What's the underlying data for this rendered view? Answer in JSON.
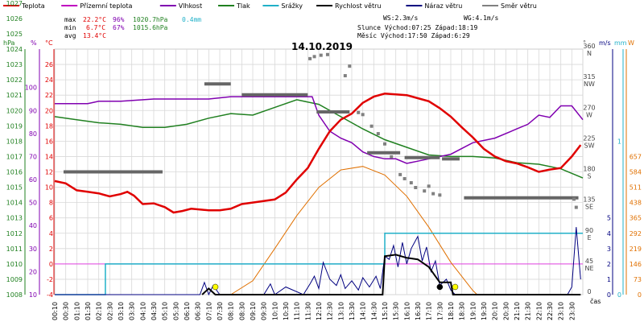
{
  "chart_data": {
    "type": "line",
    "title": "14.10.2019",
    "legend": [
      {
        "label": "Teplota",
        "color": "#e00000"
      },
      {
        "label": "Přízemní teplota",
        "color": "#c000c0"
      },
      {
        "label": "Vlhkost",
        "color": "#8000b0"
      },
      {
        "label": "Tlak",
        "color": "#208020"
      },
      {
        "label": "Srážky",
        "color": "#20b0c8"
      },
      {
        "label": "Rychlost větru",
        "color": "#000000"
      },
      {
        "label": "Náraz větru",
        "color": "#000080"
      },
      {
        "label": "Směr větru",
        "color": "#808080"
      }
    ],
    "stats": {
      "max_label": "max",
      "min_label": "min",
      "avg_label": "avg",
      "max_temp": "22.2°C",
      "max_hum": "96%",
      "max_press": "1020.7hPa",
      "max_rain": "0.4mm",
      "min_temp": "6.7°C",
      "min_hum": "67%",
      "min_press": "1015.6hPa",
      "avg_temp": "13.4°C"
    },
    "wind_info": {
      "ws": "WS:2.3m/s",
      "wg": "WG:4.1m/s",
      "sun": "Slunce Východ:07:25  Západ:18:19",
      "moon": "Měsíc  Východ:17:50  Západ:6:29"
    },
    "axis_units": {
      "hpa": "hPa",
      "percent": "%",
      "celsius": "°C",
      "degree": "°",
      "ms": "m/s",
      "mm": "mm",
      "watt": "W",
      "time": "čas"
    },
    "axes": {
      "x_range_hours": [
        0,
        24
      ],
      "x_ticks": [
        "00:10",
        "00:30",
        "01:10",
        "01:30",
        "02:10",
        "02:30",
        "03:10",
        "03:30",
        "04:10",
        "04:30",
        "05:10",
        "05:30",
        "06:10",
        "06:30",
        "07:10",
        "07:30",
        "08:10",
        "08:30",
        "09:10",
        "09:30",
        "10:10",
        "10:30",
        "11:10",
        "11:30",
        "12:10",
        "12:30",
        "13:10",
        "13:30",
        "14:10",
        "14:30",
        "15:10",
        "15:30",
        "16:10",
        "16:30",
        "17:10",
        "17:30",
        "18:10",
        "18:30",
        "19:10",
        "19:30",
        "20:10",
        "20:30",
        "21:10",
        "21:30",
        "22:10",
        "22:30",
        "23:10",
        "23:30"
      ],
      "pressure_ticks": [
        1008,
        1009,
        1010,
        1011,
        1012,
        1013,
        1014,
        1015,
        1016,
        1017,
        1018,
        1019,
        1020,
        1021,
        1022,
        1023,
        1024,
        1025,
        1026,
        1027
      ],
      "humidity_ticks": [
        10,
        20,
        30,
        40,
        50,
        60,
        70,
        80,
        90,
        100
      ],
      "temp_ticks": [
        -4,
        -2,
        0,
        2,
        4,
        6,
        8,
        10,
        12,
        14,
        16,
        18,
        20,
        22,
        24,
        26
      ],
      "temp_range": [
        -4,
        28
      ],
      "direction_ticks": [
        {
          "deg": 0,
          "label": "0"
        },
        {
          "deg": 45,
          "label": "45"
        },
        {
          "deg": 45,
          "label": "NE"
        },
        {
          "deg": 90,
          "label": "90"
        },
        {
          "deg": 90,
          "label": "E"
        },
        {
          "deg": 135,
          "label": "135"
        },
        {
          "deg": 135,
          "label": "SE"
        },
        {
          "deg": 180,
          "label": "180"
        },
        {
          "deg": 180,
          "label": "S"
        },
        {
          "deg": 225,
          "label": "225"
        },
        {
          "deg": 225,
          "label": "SW"
        },
        {
          "deg": 270,
          "label": "270"
        },
        {
          "deg": 270,
          "label": "W"
        },
        {
          "deg": 315,
          "label": "315"
        },
        {
          "deg": 315,
          "label": "NW"
        },
        {
          "deg": 360,
          "label": "360"
        },
        {
          "deg": 360,
          "label": "N"
        }
      ],
      "wind_ticks": [
        0,
        1,
        2,
        3,
        4,
        5
      ],
      "rain_ticks": [
        0,
        1
      ],
      "solar_ticks": [
        0,
        73,
        146,
        219,
        292,
        365,
        438,
        511,
        584,
        657
      ]
    },
    "temperature": [
      [
        0,
        10.8
      ],
      [
        0.5,
        10.5
      ],
      [
        1,
        9.6
      ],
      [
        1.5,
        9.4
      ],
      [
        2,
        9.2
      ],
      [
        2.5,
        8.8
      ],
      [
        3,
        9.1
      ],
      [
        3.3,
        9.4
      ],
      [
        3.6,
        8.9
      ],
      [
        4,
        7.8
      ],
      [
        4.5,
        7.9
      ],
      [
        5,
        7.4
      ],
      [
        5.4,
        6.7
      ],
      [
        5.8,
        6.9
      ],
      [
        6.2,
        7.2
      ],
      [
        7,
        7.0
      ],
      [
        7.5,
        7.0
      ],
      [
        8,
        7.2
      ],
      [
        8.5,
        7.8
      ],
      [
        9,
        8.0
      ],
      [
        10,
        8.4
      ],
      [
        10.5,
        9.3
      ],
      [
        11,
        11.0
      ],
      [
        11.5,
        12.5
      ],
      [
        12,
        15.0
      ],
      [
        12.5,
        17.3
      ],
      [
        13,
        18.8
      ],
      [
        13.5,
        19.6
      ],
      [
        14,
        21.0
      ],
      [
        14.5,
        21.8
      ],
      [
        15,
        22.2
      ],
      [
        15.5,
        22.1
      ],
      [
        16,
        22.0
      ],
      [
        16.5,
        21.6
      ],
      [
        17,
        21.2
      ],
      [
        17.5,
        20.3
      ],
      [
        18,
        19.2
      ],
      [
        18.5,
        17.8
      ],
      [
        19,
        16.5
      ],
      [
        19.5,
        15.0
      ],
      [
        20,
        14.0
      ],
      [
        20.5,
        13.4
      ],
      [
        21,
        13.1
      ],
      [
        21.5,
        12.6
      ],
      [
        22,
        12.0
      ],
      [
        22.5,
        12.3
      ],
      [
        23,
        12.5
      ],
      [
        23.5,
        14.0
      ],
      [
        23.9,
        15.5
      ]
    ],
    "humidity": [
      [
        0,
        93
      ],
      [
        1.5,
        93
      ],
      [
        2,
        94
      ],
      [
        3,
        94
      ],
      [
        4.5,
        95
      ],
      [
        5,
        95
      ],
      [
        7,
        95
      ],
      [
        8,
        96
      ],
      [
        10,
        96
      ],
      [
        11,
        96
      ],
      [
        11.7,
        96
      ],
      [
        12,
        88
      ],
      [
        12.5,
        81
      ],
      [
        13,
        78
      ],
      [
        13.5,
        76
      ],
      [
        14,
        72
      ],
      [
        14.5,
        70
      ],
      [
        15,
        69
      ],
      [
        15.5,
        69
      ],
      [
        16,
        67
      ],
      [
        16.5,
        68
      ],
      [
        17,
        69
      ],
      [
        18,
        71
      ],
      [
        19,
        76
      ],
      [
        20,
        78
      ],
      [
        21,
        82
      ],
      [
        21.5,
        84
      ],
      [
        22,
        88
      ],
      [
        22.5,
        87
      ],
      [
        23,
        92
      ],
      [
        23.5,
        92
      ],
      [
        24,
        86
      ]
    ],
    "pressure": [
      [
        0,
        1019.6
      ],
      [
        1,
        1019.4
      ],
      [
        2,
        1019.2
      ],
      [
        3,
        1019.1
      ],
      [
        4,
        1018.9
      ],
      [
        5,
        1018.9
      ],
      [
        6,
        1019.1
      ],
      [
        7,
        1019.5
      ],
      [
        8,
        1019.8
      ],
      [
        9,
        1019.7
      ],
      [
        10,
        1020.2
      ],
      [
        11,
        1020.7
      ],
      [
        12,
        1020.4
      ],
      [
        13,
        1019.6
      ],
      [
        14,
        1018.8
      ],
      [
        15,
        1018.1
      ],
      [
        16,
        1017.6
      ],
      [
        17,
        1017.1
      ],
      [
        18,
        1017.0
      ],
      [
        19,
        1017.0
      ],
      [
        20,
        1016.9
      ],
      [
        21,
        1016.6
      ],
      [
        22,
        1016.5
      ],
      [
        23,
        1016.2
      ],
      [
        24,
        1015.6
      ]
    ],
    "rain_mm": [
      [
        0,
        0
      ],
      [
        2.3,
        0
      ],
      [
        2.3,
        0.2
      ],
      [
        15,
        0.2
      ],
      [
        15,
        0.4
      ],
      [
        24,
        0.4
      ]
    ],
    "wind_speed": [
      [
        6.7,
        0
      ],
      [
        7.0,
        0.4
      ],
      [
        7.3,
        0
      ],
      [
        14.9,
        0
      ],
      [
        15.0,
        2.5
      ],
      [
        15.5,
        2.6
      ],
      [
        16.0,
        2.4
      ],
      [
        16.5,
        2.3
      ],
      [
        17.0,
        1.8
      ],
      [
        17.5,
        0.8
      ],
      [
        18.0,
        0.8
      ],
      [
        18.1,
        0
      ],
      [
        23.9,
        0
      ]
    ],
    "wind_gust": [
      [
        0,
        0
      ],
      [
        6.6,
        0
      ],
      [
        6.8,
        0.8
      ],
      [
        7.0,
        0
      ],
      [
        7.2,
        0.6
      ],
      [
        7.5,
        0
      ],
      [
        9.5,
        0
      ],
      [
        9.8,
        0.7
      ],
      [
        10.0,
        0
      ],
      [
        10.5,
        0.5
      ],
      [
        11.3,
        0
      ],
      [
        11.6,
        0.7
      ],
      [
        11.8,
        1.2
      ],
      [
        12.0,
        0.4
      ],
      [
        12.2,
        2.1
      ],
      [
        12.5,
        1.0
      ],
      [
        12.8,
        0.6
      ],
      [
        13.0,
        1.3
      ],
      [
        13.2,
        0.4
      ],
      [
        13.5,
        0.9
      ],
      [
        13.8,
        0.3
      ],
      [
        14.0,
        1.1
      ],
      [
        14.3,
        0.5
      ],
      [
        14.6,
        1.2
      ],
      [
        14.8,
        0.4
      ],
      [
        15.0,
        2.5
      ],
      [
        15.2,
        2.3
      ],
      [
        15.4,
        3.2
      ],
      [
        15.6,
        1.8
      ],
      [
        15.8,
        3.4
      ],
      [
        16.0,
        2.0
      ],
      [
        16.2,
        3.0
      ],
      [
        16.5,
        3.8
      ],
      [
        16.7,
        2.2
      ],
      [
        16.9,
        3.1
      ],
      [
        17.1,
        1.5
      ],
      [
        17.3,
        2.2
      ],
      [
        17.5,
        0.6
      ],
      [
        17.8,
        1.0
      ],
      [
        18.0,
        0.3
      ],
      [
        18.2,
        0
      ],
      [
        23.3,
        0
      ],
      [
        23.5,
        0.5
      ],
      [
        23.7,
        4.4
      ],
      [
        23.9,
        1.0
      ]
    ],
    "solar_w_m2": [
      [
        8,
        0
      ],
      [
        9,
        66
      ],
      [
        10,
        219
      ],
      [
        11,
        376
      ],
      [
        12,
        510
      ],
      [
        13,
        593
      ],
      [
        14,
        610
      ],
      [
        15,
        569
      ],
      [
        16,
        468
      ],
      [
        17,
        321
      ],
      [
        18,
        154
      ],
      [
        19,
        20
      ],
      [
        19.2,
        0
      ]
    ],
    "wind_direction_segments": [
      [
        0.4,
        4.9,
        180
      ],
      [
        6.8,
        8.0,
        309
      ],
      [
        8.5,
        11.5,
        293
      ],
      [
        11.9,
        13.4,
        268
      ],
      [
        14.2,
        15.7,
        208
      ],
      [
        15.9,
        17.5,
        201
      ],
      [
        17.6,
        18.4,
        199
      ],
      [
        18.6,
        23.8,
        142
      ]
    ],
    "wind_direction_dots": [
      [
        11.6,
        346
      ],
      [
        11.8,
        349
      ],
      [
        12.1,
        351
      ],
      [
        12.4,
        352
      ],
      [
        13.2,
        321
      ],
      [
        13.4,
        335
      ],
      [
        13.8,
        267
      ],
      [
        14.0,
        264
      ],
      [
        14.4,
        247
      ],
      [
        14.7,
        236
      ],
      [
        15.0,
        221
      ],
      [
        15.3,
        202
      ],
      [
        15.7,
        176
      ],
      [
        15.9,
        170
      ],
      [
        16.2,
        164
      ],
      [
        16.4,
        157
      ],
      [
        16.8,
        152
      ],
      [
        17.0,
        159
      ],
      [
        17.2,
        148
      ],
      [
        17.5,
        146
      ],
      [
        23.6,
        140
      ],
      [
        23.7,
        128
      ]
    ],
    "markers": [
      {
        "t": 7.3,
        "color": "#ffff00"
      },
      {
        "t": 17.5,
        "color": "#000000"
      },
      {
        "t": 18.2,
        "color": "#ffff00"
      }
    ]
  }
}
